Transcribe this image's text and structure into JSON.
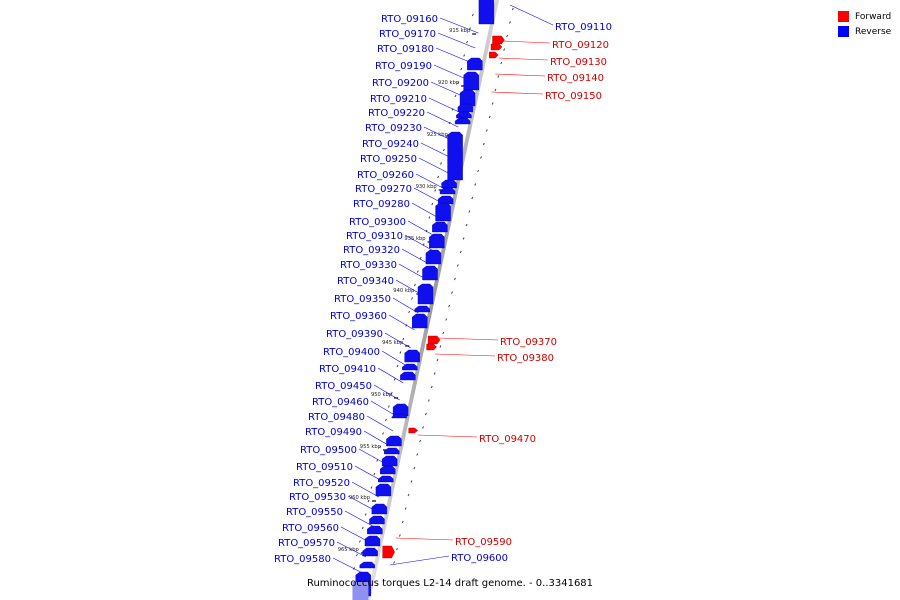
{
  "caption": "Ruminococcus torques L2-14 draft genome. - 0..3341681",
  "legend": [
    {
      "label": "Forward",
      "color": "#ff0000"
    },
    {
      "label": "Reverse",
      "color": "#0000ff"
    }
  ],
  "colors": {
    "forward": "#ff0000",
    "reverse": "#1010ee",
    "reverse_label": "#0000cc",
    "forward_label": "#cc0000",
    "backbone": "#b8b8b8"
  },
  "scale_ticks": [
    "915 kbp",
    "920 kbp",
    "925 kbp",
    "930 kbp",
    "935 kbp",
    "940 kbp",
    "945 kbp",
    "950 kbp",
    "955 kbp",
    "960 kbp",
    "965 kbp"
  ],
  "reverse_genes": [
    "RTO_09160",
    "RTO_09170",
    "RTO_09180",
    "RTO_09190",
    "RTO_09200",
    "RTO_09210",
    "RTO_09220",
    "RTO_09230",
    "RTO_09240",
    "RTO_09250",
    "RTO_09260",
    "RTO_09270",
    "RTO_09280",
    "RTO_09300",
    "RTO_09310",
    "RTO_09320",
    "RTO_09330",
    "RTO_09340",
    "RTO_09350",
    "RTO_09360",
    "RTO_09390",
    "RTO_09400",
    "RTO_09410",
    "RTO_09450",
    "RTO_09460",
    "RTO_09480",
    "RTO_09490",
    "RTO_09500",
    "RTO_09510",
    "RTO_09520",
    "RTO_09530",
    "RTO_09550",
    "RTO_09560",
    "RTO_09570",
    "RTO_09580"
  ],
  "right_genes": [
    {
      "name": "RTO_09110",
      "strand": "reverse"
    },
    {
      "name": "RTO_09120",
      "strand": "forward"
    },
    {
      "name": "RTO_09130",
      "strand": "forward"
    },
    {
      "name": "RTO_09140",
      "strand": "forward"
    },
    {
      "name": "RTO_09150",
      "strand": "forward"
    },
    {
      "name": "RTO_09370",
      "strand": "forward"
    },
    {
      "name": "RTO_09380",
      "strand": "forward"
    },
    {
      "name": "RTO_09470",
      "strand": "forward"
    },
    {
      "name": "RTO_09590",
      "strand": "forward"
    },
    {
      "name": "RTO_09600",
      "strand": "reverse"
    }
  ]
}
